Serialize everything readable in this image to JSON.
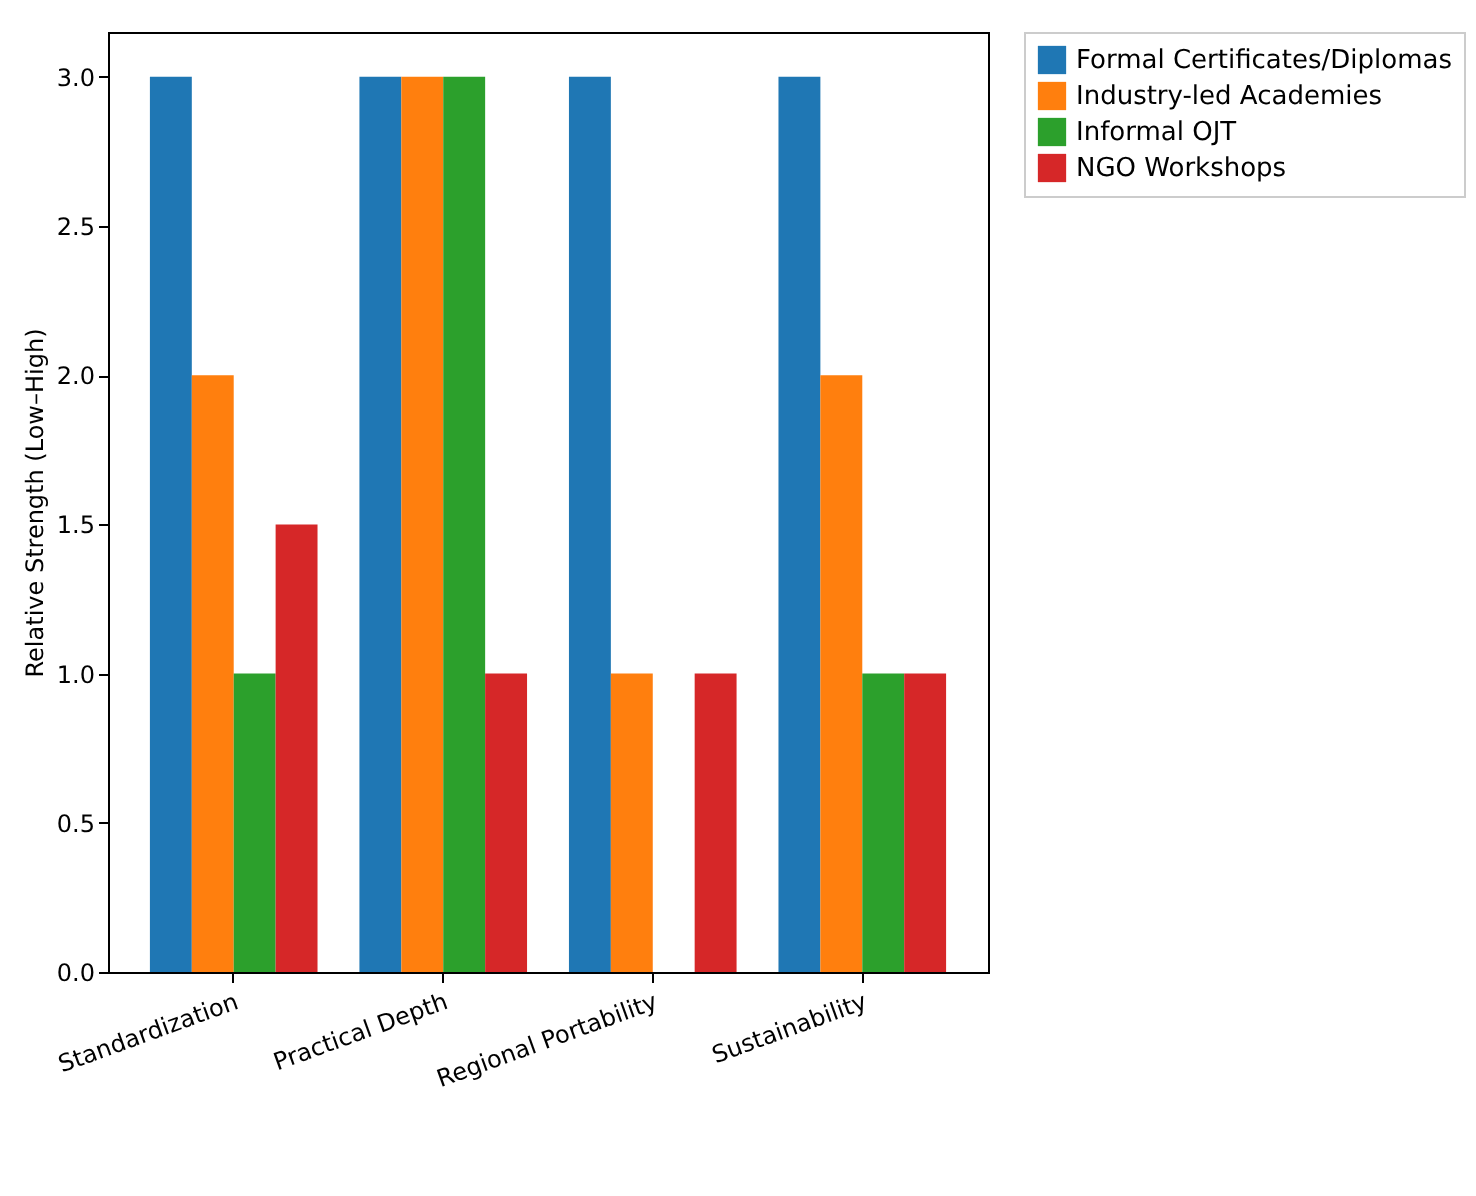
{
  "chart_data": {
    "type": "bar",
    "ylabel": "Relative Strength (Low–High)",
    "categories": [
      "Standardization",
      "Practical Depth",
      "Regional Portability",
      "Sustainability"
    ],
    "series": [
      {
        "name": "Formal Certificates/Diplomas",
        "color": "#1f77b4",
        "values": [
          3,
          3,
          3,
          3
        ]
      },
      {
        "name": "Industry-led Academies",
        "color": "#ff7f0e",
        "values": [
          2,
          3,
          1,
          2
        ]
      },
      {
        "name": "Informal OJT",
        "color": "#2ca02c",
        "values": [
          1,
          3,
          0,
          1
        ]
      },
      {
        "name": "NGO Workshops",
        "color": "#d62728",
        "values": [
          1.5,
          1,
          1,
          1
        ]
      }
    ],
    "ylim": [
      0,
      3.15
    ],
    "yticks": [
      {
        "value": 0,
        "label": "0.0"
      },
      0.5,
      {
        "value": 1,
        "label": "1.0"
      },
      1.5,
      {
        "value": 2,
        "label": "2.0"
      },
      2.5,
      {
        "value": 3,
        "label": "3.0"
      }
    ],
    "grid": false,
    "legend": "top right"
  }
}
